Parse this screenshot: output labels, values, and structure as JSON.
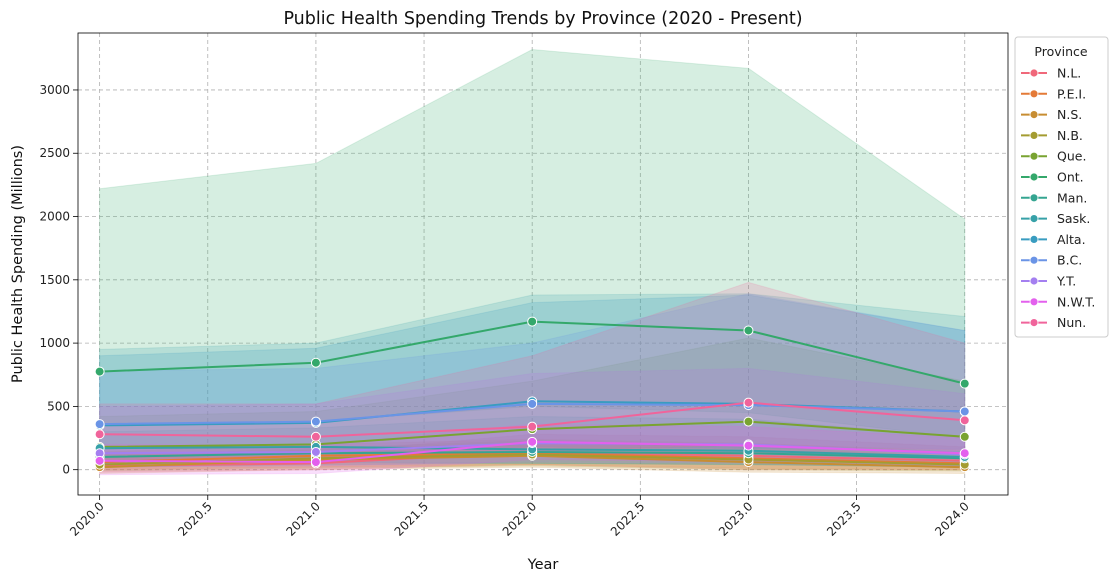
{
  "chart_data": {
    "type": "line",
    "title": "Public Health Spending Trends by Province (2020 - Present)",
    "xlabel": "Year",
    "ylabel": "Public Health Spending (Millions)",
    "xlim": [
      2019.9,
      2024.2
    ],
    "ylim": [
      -200,
      3450
    ],
    "xticks": [
      2020.0,
      2020.5,
      2021.0,
      2021.5,
      2022.0,
      2022.5,
      2023.0,
      2023.5,
      2024.0
    ],
    "yticks": [
      0,
      500,
      1000,
      1500,
      2000,
      2500,
      3000
    ],
    "grid": true,
    "legend": {
      "title": "Province",
      "placement": "outside-upper-right"
    },
    "x": [
      2020,
      2021,
      2022,
      2023,
      2024
    ],
    "series": [
      {
        "name": "N.L.",
        "color": "#f0687a",
        "values": [
          30,
          50,
          140,
          110,
          70
        ],
        "band_low": [
          -20,
          0,
          40,
          0,
          0
        ],
        "band_high": [
          120,
          130,
          280,
          260,
          180
        ]
      },
      {
        "name": "P.E.I.",
        "color": "#e47a37",
        "values": [
          60,
          110,
          130,
          90,
          50
        ],
        "band_low": [
          0,
          20,
          40,
          10,
          0
        ],
        "band_high": [
          140,
          200,
          240,
          210,
          140
        ]
      },
      {
        "name": "N.S.",
        "color": "#c78d32",
        "values": [
          20,
          80,
          110,
          60,
          20
        ],
        "band_low": [
          -30,
          0,
          20,
          -20,
          -30
        ],
        "band_high": [
          90,
          160,
          210,
          180,
          100
        ]
      },
      {
        "name": "N.B.",
        "color": "#a49c31",
        "values": [
          40,
          90,
          120,
          80,
          40
        ],
        "band_low": [
          -10,
          10,
          30,
          0,
          -10
        ],
        "band_high": [
          110,
          170,
          230,
          190,
          120
        ]
      },
      {
        "name": "Que.",
        "color": "#79a331",
        "values": [
          180,
          200,
          320,
          380,
          260
        ],
        "band_low": [
          40,
          60,
          120,
          140,
          90
        ],
        "band_high": [
          420,
          460,
          700,
          1040,
          700
        ]
      },
      {
        "name": "Ont.",
        "color": "#34a86b",
        "values": [
          775,
          845,
          1170,
          1100,
          680
        ],
        "band_low": [
          350,
          380,
          500,
          450,
          250
        ],
        "band_high": [
          2220,
          2420,
          3320,
          3170,
          1980
        ]
      },
      {
        "name": "Man.",
        "color": "#35a591",
        "values": [
          100,
          130,
          140,
          130,
          90
        ],
        "band_low": [
          20,
          40,
          50,
          40,
          20
        ],
        "band_high": [
          300,
          330,
          420,
          400,
          260
        ]
      },
      {
        "name": "Sask.",
        "color": "#37a1a8",
        "values": [
          170,
          180,
          160,
          150,
          100
        ],
        "band_low": [
          50,
          60,
          50,
          40,
          20
        ],
        "band_high": [
          950,
          1000,
          1380,
          1390,
          1210
        ]
      },
      {
        "name": "Alta.",
        "color": "#399cc0",
        "values": [
          350,
          370,
          540,
          520,
          460
        ],
        "band_low": [
          100,
          120,
          180,
          170,
          140
        ],
        "band_high": [
          900,
          960,
          1320,
          1380,
          1100
        ]
      },
      {
        "name": "B.C.",
        "color": "#6a94e6",
        "values": [
          360,
          380,
          520,
          510,
          460
        ],
        "band_low": [
          120,
          140,
          200,
          190,
          160
        ],
        "band_high": [
          780,
          800,
          1000,
          1390,
          1100
        ]
      },
      {
        "name": "Y.T.",
        "color": "#a47ff0",
        "values": [
          130,
          140,
          210,
          200,
          120
        ],
        "band_low": [
          20,
          30,
          60,
          50,
          20
        ],
        "band_high": [
          500,
          520,
          760,
          800,
          600
        ]
      },
      {
        "name": "N.W.T.",
        "color": "#e360ed",
        "values": [
          70,
          60,
          220,
          190,
          130
        ],
        "band_low": [
          -40,
          -30,
          80,
          60,
          20
        ],
        "band_high": [
          200,
          190,
          360,
          340,
          250
        ]
      },
      {
        "name": "Nun.",
        "color": "#f0649b",
        "values": [
          280,
          260,
          340,
          530,
          390
        ],
        "band_low": [
          80,
          80,
          140,
          200,
          150
        ],
        "band_high": [
          520,
          520,
          900,
          1480,
          1000
        ]
      }
    ]
  }
}
